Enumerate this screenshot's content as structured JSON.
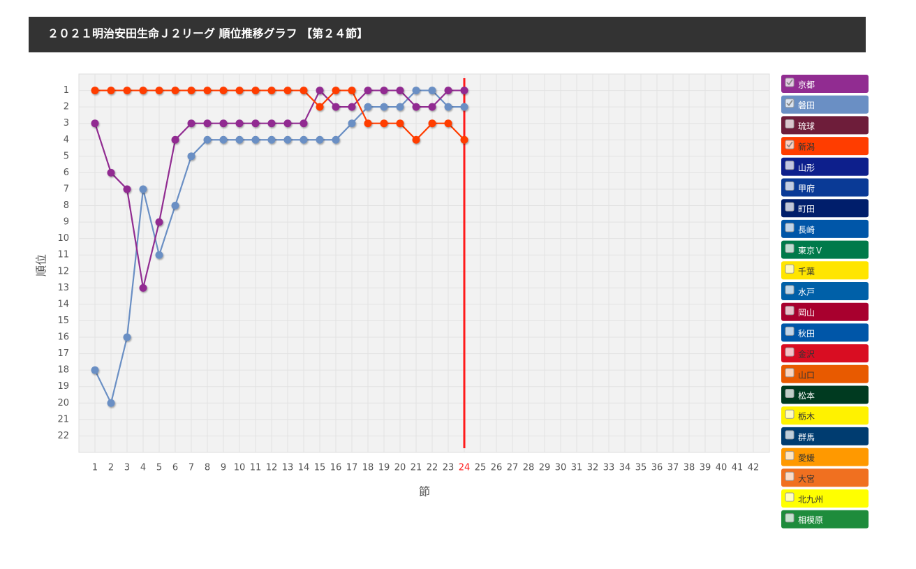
{
  "chart_data": {
    "type": "line",
    "title": "２０２１明治安田生命Ｊ２リーグ 順位推移グラフ 【第２４節】",
    "x_label": "節",
    "y_label": "順位",
    "x": [
      1,
      2,
      3,
      4,
      5,
      6,
      7,
      8,
      9,
      10,
      11,
      12,
      13,
      14,
      15,
      16,
      17,
      18,
      19,
      20,
      21,
      22,
      23,
      24,
      25,
      26,
      27,
      28,
      29,
      30,
      31,
      32,
      33,
      34,
      35,
      36,
      37,
      38,
      39,
      40,
      41,
      42
    ],
    "xlim": [
      0,
      43
    ],
    "xticks": [
      1,
      2,
      3,
      4,
      5,
      6,
      7,
      8,
      9,
      10,
      11,
      12,
      13,
      14,
      15,
      16,
      17,
      18,
      19,
      20,
      21,
      22,
      23,
      24,
      25,
      26,
      27,
      28,
      29,
      30,
      31,
      32,
      33,
      34,
      35,
      36,
      37,
      38,
      39,
      40,
      41,
      42
    ],
    "ylim": [
      23,
      0
    ],
    "yticks": [
      1,
      2,
      3,
      4,
      5,
      6,
      7,
      8,
      9,
      10,
      11,
      12,
      13,
      14,
      15,
      16,
      17,
      18,
      19,
      20,
      21,
      22
    ],
    "grid": true,
    "current_round": 24,
    "current_round_color": "#ff1a1a",
    "legend": "right",
    "series": [
      {
        "name": "京都",
        "color": "#912c91",
        "text_color": "#ffffff",
        "checked": true,
        "values": [
          3,
          6,
          7,
          13,
          9,
          4,
          3,
          3,
          3,
          3,
          3,
          3,
          3,
          3,
          1,
          2,
          2,
          1,
          1,
          1,
          2,
          2,
          1,
          1,
          null,
          null,
          null,
          null,
          null,
          null,
          null,
          null,
          null,
          null,
          null,
          null,
          null,
          null,
          null,
          null,
          null,
          null
        ]
      },
      {
        "name": "磐田",
        "color": "#6a8fc4",
        "text_color": "#ffffff",
        "checked": true,
        "values": [
          18,
          20,
          16,
          7,
          11,
          8,
          5,
          4,
          4,
          4,
          4,
          4,
          4,
          4,
          4,
          4,
          3,
          2,
          2,
          2,
          1,
          1,
          2,
          2,
          null,
          null,
          null,
          null,
          null,
          null,
          null,
          null,
          null,
          null,
          null,
          null,
          null,
          null,
          null,
          null,
          null,
          null
        ]
      },
      {
        "name": "琉球",
        "color": "#6e1d3a",
        "text_color": "#ffffff",
        "checked": false
      },
      {
        "name": "新潟",
        "color": "#ff3d00",
        "text_color": "#333333",
        "checked": true,
        "values": [
          1,
          1,
          1,
          1,
          1,
          1,
          1,
          1,
          1,
          1,
          1,
          1,
          1,
          1,
          2,
          1,
          1,
          3,
          3,
          3,
          4,
          3,
          3,
          4,
          null,
          null,
          null,
          null,
          null,
          null,
          null,
          null,
          null,
          null,
          null,
          null,
          null,
          null,
          null,
          null,
          null,
          null
        ]
      },
      {
        "name": "山形",
        "color": "#0d1f8c",
        "text_color": "#ffffff",
        "checked": false
      },
      {
        "name": "甲府",
        "color": "#0a3a96",
        "text_color": "#ffffff",
        "checked": false
      },
      {
        "name": "町田",
        "color": "#001e6b",
        "text_color": "#ffffff",
        "checked": false
      },
      {
        "name": "長崎",
        "color": "#0056a8",
        "text_color": "#ffffff",
        "checked": false
      },
      {
        "name": "東京Ｖ",
        "color": "#007a4a",
        "text_color": "#ffffff",
        "checked": false
      },
      {
        "name": "千葉",
        "color": "#ffe500",
        "text_color": "#333333",
        "checked": false
      },
      {
        "name": "水戸",
        "color": "#0060a8",
        "text_color": "#ffffff",
        "checked": false
      },
      {
        "name": "岡山",
        "color": "#a8002e",
        "text_color": "#ffffff",
        "checked": false
      },
      {
        "name": "秋田",
        "color": "#0056a8",
        "text_color": "#ffffff",
        "checked": false
      },
      {
        "name": "金沢",
        "color": "#d90d22",
        "text_color": "#333333",
        "checked": false
      },
      {
        "name": "山口",
        "color": "#e85a00",
        "text_color": "#333333",
        "checked": false
      },
      {
        "name": "松本",
        "color": "#003a20",
        "text_color": "#ffffff",
        "checked": false
      },
      {
        "name": "栃木",
        "color": "#fff200",
        "text_color": "#333333",
        "checked": false
      },
      {
        "name": "群馬",
        "color": "#003c70",
        "text_color": "#ffffff",
        "checked": false
      },
      {
        "name": "愛媛",
        "color": "#ff9900",
        "text_color": "#333333",
        "checked": false
      },
      {
        "name": "大宮",
        "color": "#f07020",
        "text_color": "#333333",
        "checked": false
      },
      {
        "name": "北九州",
        "color": "#ffff00",
        "text_color": "#333333",
        "checked": false
      },
      {
        "name": "相模原",
        "color": "#1e8c3c",
        "text_color": "#ffffff",
        "checked": false
      }
    ]
  }
}
